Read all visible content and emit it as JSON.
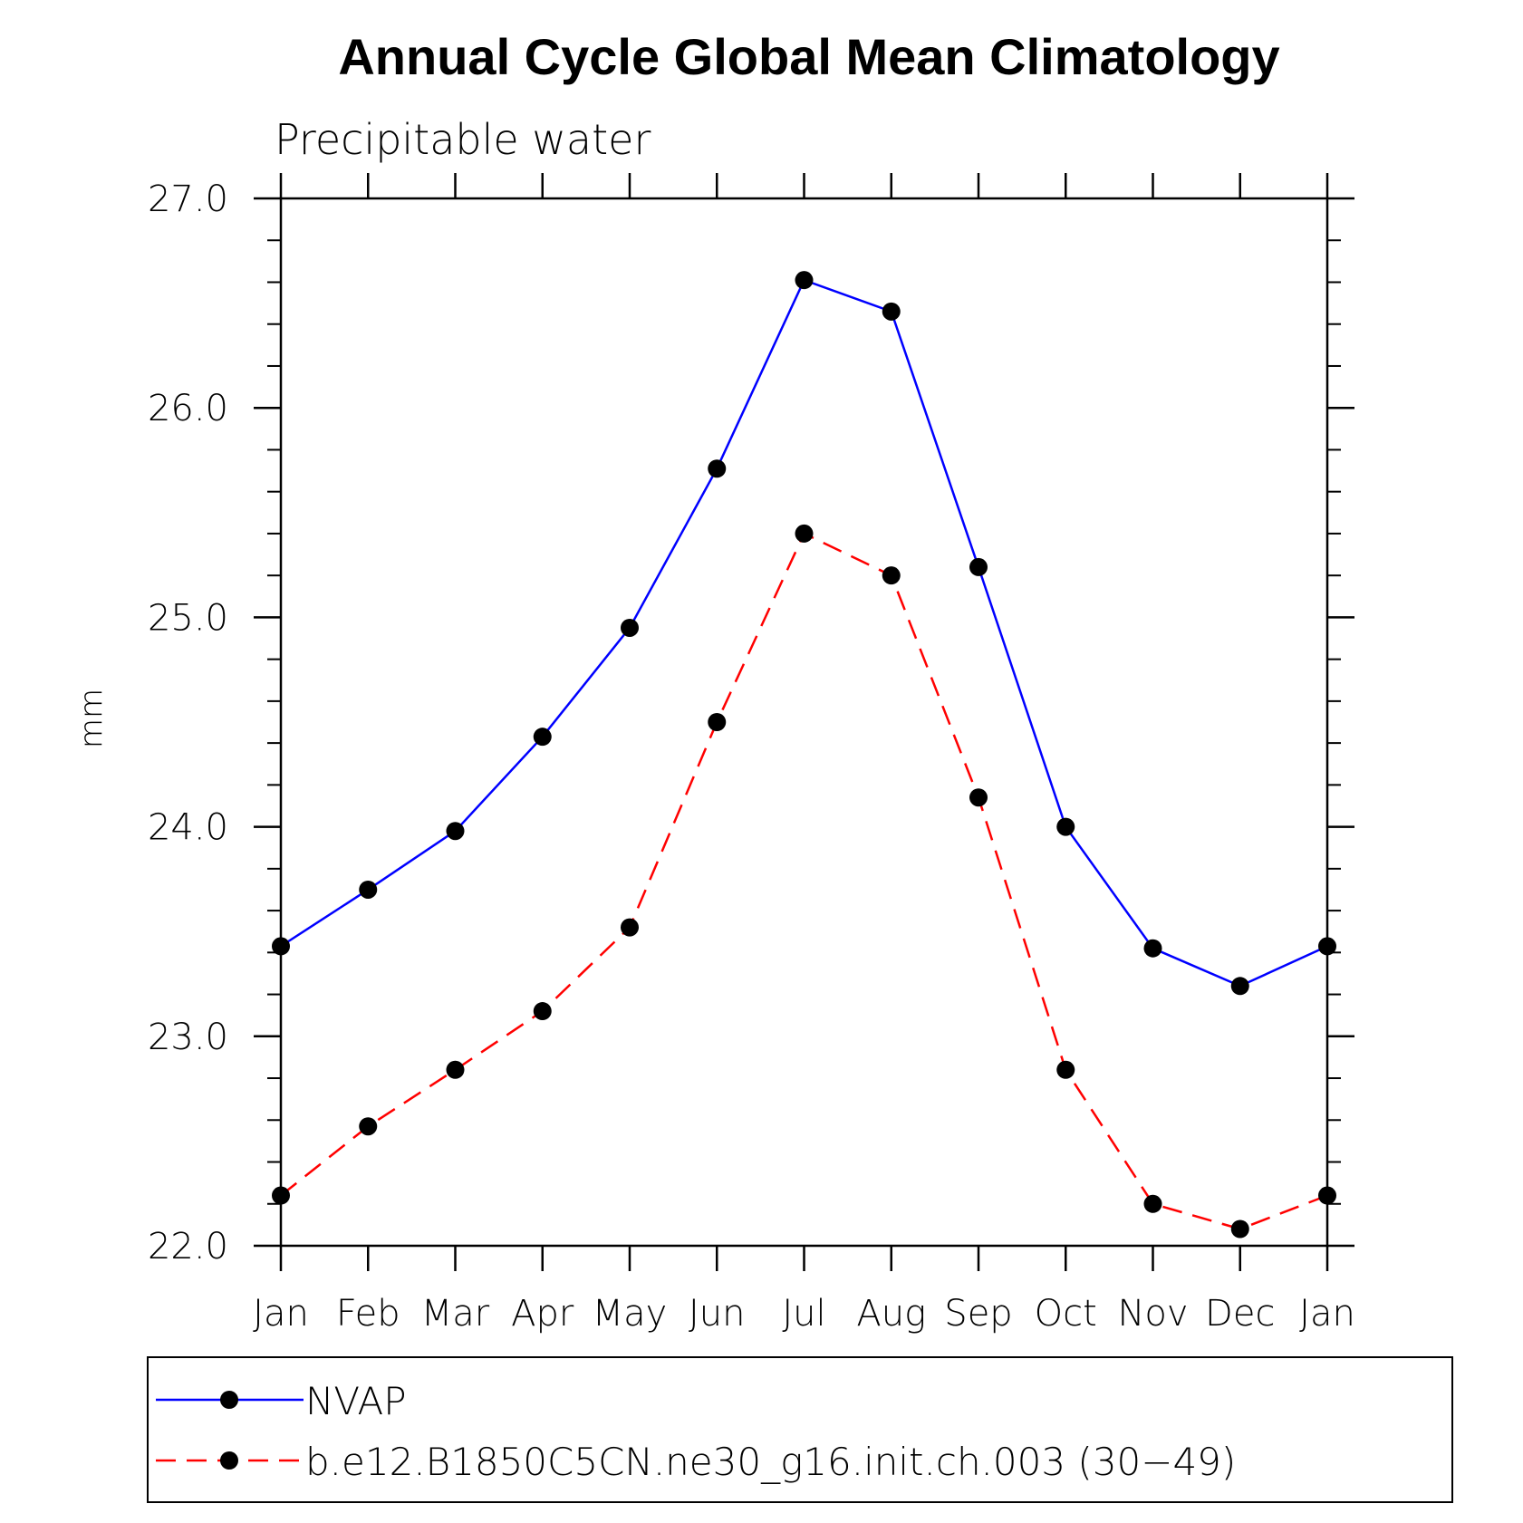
{
  "chart_data": {
    "type": "line",
    "title": "Annual Cycle Global Mean Climatology",
    "subtitle": "Precipitable water",
    "ylabel": "mm",
    "xlabel": "",
    "ylim": [
      22.0,
      27.0
    ],
    "yticks": [
      "22.0",
      "23.0",
      "24.0",
      "25.0",
      "26.0",
      "27.0"
    ],
    "y_minor_step": 0.2,
    "categories": [
      "Jan",
      "Feb",
      "Mar",
      "Apr",
      "May",
      "Jun",
      "Jul",
      "Aug",
      "Sep",
      "Oct",
      "Nov",
      "Dec",
      "Jan"
    ],
    "series": [
      {
        "name": "NVAP",
        "color": "#0000ff",
        "dash": "solid",
        "marker": "filled-circle",
        "values": [
          23.43,
          23.7,
          23.98,
          24.43,
          24.95,
          25.71,
          26.61,
          26.46,
          25.24,
          24.0,
          23.42,
          23.24,
          23.43
        ]
      },
      {
        "name": "b.e12.B1850C5CN.ne30_g16.init.ch.003 (30−49)",
        "color": "#ff0000",
        "dash": "dashed",
        "marker": "filled-circle",
        "values": [
          22.24,
          22.57,
          22.84,
          23.12,
          23.52,
          24.5,
          25.4,
          25.2,
          24.14,
          22.84,
          22.2,
          22.08,
          22.24
        ]
      }
    ],
    "legend_position": "bottom",
    "grid": false
  }
}
